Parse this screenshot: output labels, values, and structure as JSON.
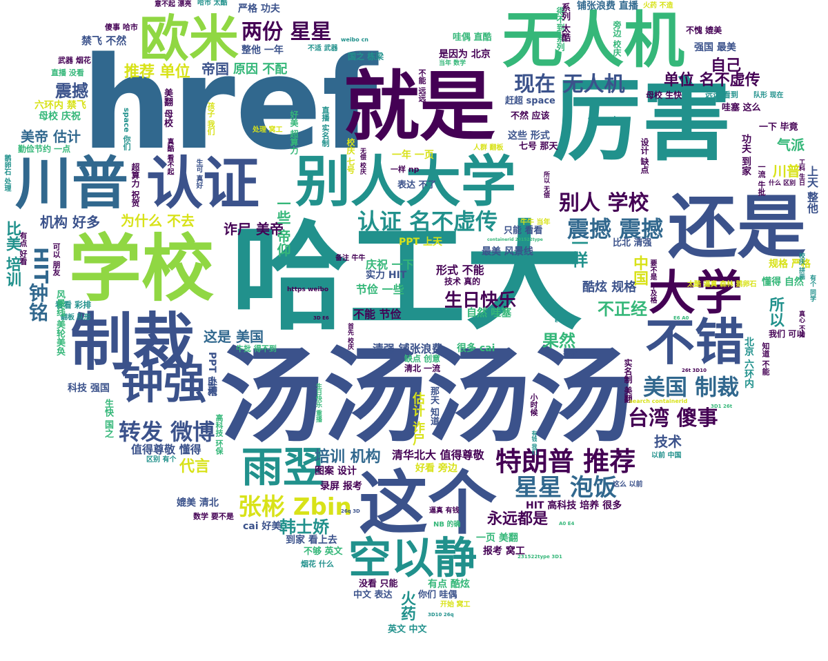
{
  "palette": {
    "dark_purple": "#440154",
    "indigo": "#3b528b",
    "blue": "#31688e",
    "teal": "#21918c",
    "green": "#35b779",
    "lime": "#90d743",
    "yellow": "#d8e219"
  },
  "words": [
    "href",
    "哈工大",
    "汤汤汤汤",
    "厉害",
    "就是",
    "学校",
    "还是",
    "无人机",
    "制裁",
    "川普",
    "认证",
    "别人",
    "大学",
    "这个",
    "欧米",
    "不错",
    "空以静",
    "钟强",
    "雨翌",
    "特朗普",
    "推荐",
    "星星",
    "泡饭",
    "张彬",
    "Zbin",
    "美国",
    "台湾",
    "傻事",
    "转发",
    "微博",
    "两份",
    "现在",
    "单位",
    "名不虚传",
    "震撼",
    "生日快乐",
    "韩士娇",
    "培训",
    "机构",
    "钟铭",
    "HIT",
    "比美",
    "美帝",
    "估计",
    "诈尸",
    "为什么",
    "不去",
    "一样",
    "中国",
    "不正经",
    "果然",
    "所以",
    "酷炫",
    "规格",
    "自己",
    "技术",
    "代言",
    "永远都是",
    "火药",
    "一些",
    "帝国",
    "原因",
    "不配",
    "整他",
    "一年",
    "禁飞",
    "不然",
    "比北",
    "清强",
    "最美",
    "风景线",
    "形式",
    "不能",
    "节俭",
    "气派",
    "川普",
    "功夫",
    "严格",
    "上天",
    "是因为",
    "北京",
    "这些",
    "七号",
    "那天",
    "懂得",
    "自然",
    "哇塞",
    "铺张浪费",
    "直播",
    "强国",
    "好多",
    "赶超",
    "space",
    "值得尊敬",
    "清华北大",
    "PPT",
    "备注",
    "牛牛",
    "英文",
    "中文",
    "表达",
    "没看",
    "只能",
    "你们",
    "哇偶",
    "有点",
    "报考",
    "窝工",
    "一页",
    "报考",
    "录屏",
    "图案",
    "设计",
    "到家",
    "看上去",
    "cai",
    "好美",
    "HIT",
    "高科技",
    "培养",
    "很多",
    "媲美",
    "清北",
    "数学",
    "要不是",
    "以前",
    "学院",
    "科技",
    "强国",
    "风景线",
    "美轮美奂",
    "母校",
    "生快",
    "庆祝",
    "六环内",
    "禁飞",
    "勤俭节约",
    "一点",
    "实力",
    "看看",
    "彩排",
    "翻板",
    "队形",
    "武器",
    "烟花",
    "傻事",
    "哈市",
    "太酷",
    "逼真",
    "森林",
    "鹅卵石",
    "不愧",
    "https",
    "weibo",
    "cn",
    "search",
    "containerid",
    "26t",
    "3D10",
    "26q",
    "3D",
    "E6",
    "E4",
    "BA",
    "A0",
    "231522type",
    "3D1"
  ],
  "phrases": {
    "p1": "href",
    "p2": "哈工大",
    "p3": "汤汤汤汤",
    "p4": "厉害",
    "p5": "就是",
    "p6": "学校",
    "p7": "还是",
    "p8": "无人机",
    "p9": "制裁",
    "p10": "川普",
    "p11": "认证",
    "p12": "别人",
    "p13": "大学",
    "p14": "这个",
    "p15": "欧米",
    "p16": "不错",
    "p17": "空以静",
    "p18": "钟强",
    "p19": "雨翌",
    "p20": "特朗普 推荐",
    "p21": "星星 泡饭",
    "p22": "张彬 Zbin",
    "p23": "美国 制裁",
    "p24": "台湾 傻事",
    "p25": "转发 微博",
    "p26": "两份 星星",
    "p27": "现在 无人机",
    "p28": "单位 名不虚传",
    "p29": "震撼 震撼",
    "p30": "别人 学校",
    "p31": "认证 名不虚传",
    "p32": "生日快乐",
    "p33": "韩士娇",
    "p34": "培训 机构",
    "p35": "钟铭",
    "p36": "HIT",
    "p37": "比美 培训",
    "p38": "美帝 估计",
    "p39": "诈尸 美帝",
    "p40": "为什么 不去",
    "p41": "一样",
    "p42": "中国",
    "p43": "不正经",
    "p44": "果然",
    "p45": "所以",
    "p46": "酷炫 规格",
    "p47": "自己",
    "p48": "技术",
    "p49": "代言",
    "p50": "永远都是",
    "p51": "火药",
    "p52": "一些 帝仰",
    "p53": "帝国",
    "p54": "原因 不配",
    "p55": "推荐 单位",
    "p56": "机构 好多",
    "p57": "震撼",
    "p58": "这是 美国",
    "p59": "形式 不能",
    "p60": "不能 节俭",
    "p61": "节俭 一些",
    "p62": "庆祝 一下",
    "p63": "实力 HIT",
    "p64": "清强 铺张浪费",
    "p65": "值得尊敬 懂得",
    "p66": "清华北大 值得尊敬",
    "p67": "好看 旁边",
    "p68": "图案 设计",
    "p69": "录屏 报考",
    "p70": "HIT 高科技 培养 很多",
    "p71": "媲美 清北",
    "p72": "数学 要不是",
    "p73": "cai 好美",
    "p74": "到家 看上去",
    "p75": "不够 英文",
    "p76": "一页 美翻",
    "p77": "报考 窝工",
    "p78": "有点 酷炫",
    "p79": "你们 哇偶",
    "p80": "没看 只能",
    "p81": "中文 表达",
    "p82": "英文 中文",
    "p83": "烟花 什么",
    "p84": "开始 窝工",
    "p85": "逼真 有钱",
    "p86": "NB 的确",
    "p87": "这么 以前",
    "p88": "以前 中国",
    "p89": "铺张浪费 直播",
    "p90": "强国 最美",
    "p91": "整他 一年",
    "p92": "禁飞 不然",
    "p93": "严格 功夫",
    "p94": "意不起 漂亮",
    "p95": "哈市 太酷",
    "p96": "火药 不造",
    "p97": "傻事 哈市",
    "p98": "武器 烟花",
    "p99": "直播 没看",
    "p100": "不适 武器",
    "p101": "国之 栋梁",
    "p102": "是因为 北京",
    "p103": "哇偶 直酷",
    "p104": "不愧 媲美",
    "p105": "母校 生快",
    "p106": "远远 看到",
    "p107": "哇塞 这么",
    "p108": "不然 应该",
    "p109": "这些 形式",
    "p110": "七号 那天",
    "p111": "功夫 到家",
    "p112": "一下 毕竟",
    "p113": "气派",
    "p114": "川普",
    "p115": "上天 整他",
    "p116": "只能 看看",
    "p117": "比北 清强",
    "p118": "最美 风景线",
    "p119": "技术 真的",
    "p120": "自然 哇塞",
    "p121": "懂得 自然",
    "p122": "规格 严格",
    "p123": "很多 cai",
    "p124": "缺点 创意",
    "p125": "清北 一流",
    "p126": "PPT 上天",
    "p127": "一年 一页",
    "p128": "一样 np",
    "p129": "表达 不了",
    "p130": "六环内 禁飞",
    "p131": "母校 庆祝",
    "p132": "勤俭节约 一点",
    "p133": "看看 彩排",
    "p134": "翻板 队形",
    "p135": "风景线 美轮美奂",
    "p136": "科技 强国",
    "p137": "有点 好看",
    "p138": "可以 朋友",
    "p139": "生快 国之",
    "p140": "区别 有个",
    "p141": "超算力 祝贺",
    "p142": "美翻 母校",
    "p143": "孩子 我们",
    "p144": "处理 窝工",
    "p145": "好美 超算力",
    "p146": "space 你们",
    "p147": "人群 翻板",
    "p148": "赶超 space",
    "p149": "这些 形式",
    "p150": "设计 缺点",
    "p151": "北京 六环内",
    "p152": "实名制 美翻",
    "p153": "要不是 不及格",
    "p154": "太酷 逼真 森林 鹅卵石",
    "p155": "一流 牛批",
    "p156": "我们 可以",
    "p157": "知道 不能",
    "p158": "https weibo",
    "p159": "cn search",
    "p160": "search containerid",
    "p161": "26t 3D10",
    "p162": "3D10 26q",
    "p163": "26q 3D",
    "p164": "3D E6",
    "p165": "E4 BA",
    "p166": "E6 A0",
    "p167": "A0 E4",
    "p168": "3D1 26t",
    "p169": "231522type 3D1",
    "p170": "weibo cn",
    "p171": "containerid 231522type",
    "p172": "牛批 得不到",
    "p173": "开始",
    "p174": "牛牛 当年",
    "p175": "当年 数学",
    "p176": "备注 牛牛",
    "p177": "所以 无偿",
    "p178": "生日快乐 重播",
    "p179": "那天 知道",
    "p180": "估计 诈尸",
    "p181": "小时候",
    "p182": "有钱 我们",
    "p183": "得不到 系列",
    "p184": "系列 太酷",
    "p185": "旁边 校庆",
    "p186": "队形 现在",
    "p187": "什么 区别",
    "p188": "上天 整他",
    "p189": "不能 远远",
    "p190": "无偿 校庆",
    "p191": "校庆 七号",
    "p192": "首先 校庆",
    "p193": "直播 实名制",
    "p194": "卧槽",
    "p195": "英文",
    "p196": "校庆 拼画",
    "p197": "有个 同学",
    "p198": "工科 生日",
    "p199": "真心 不错",
    "p200": "鹅卵石 处理",
    "p201": "高科技 环保",
    "p202": "真酷 看不起",
    "p203": "生可 真好",
    "p204": "不造 武器"
  }
}
